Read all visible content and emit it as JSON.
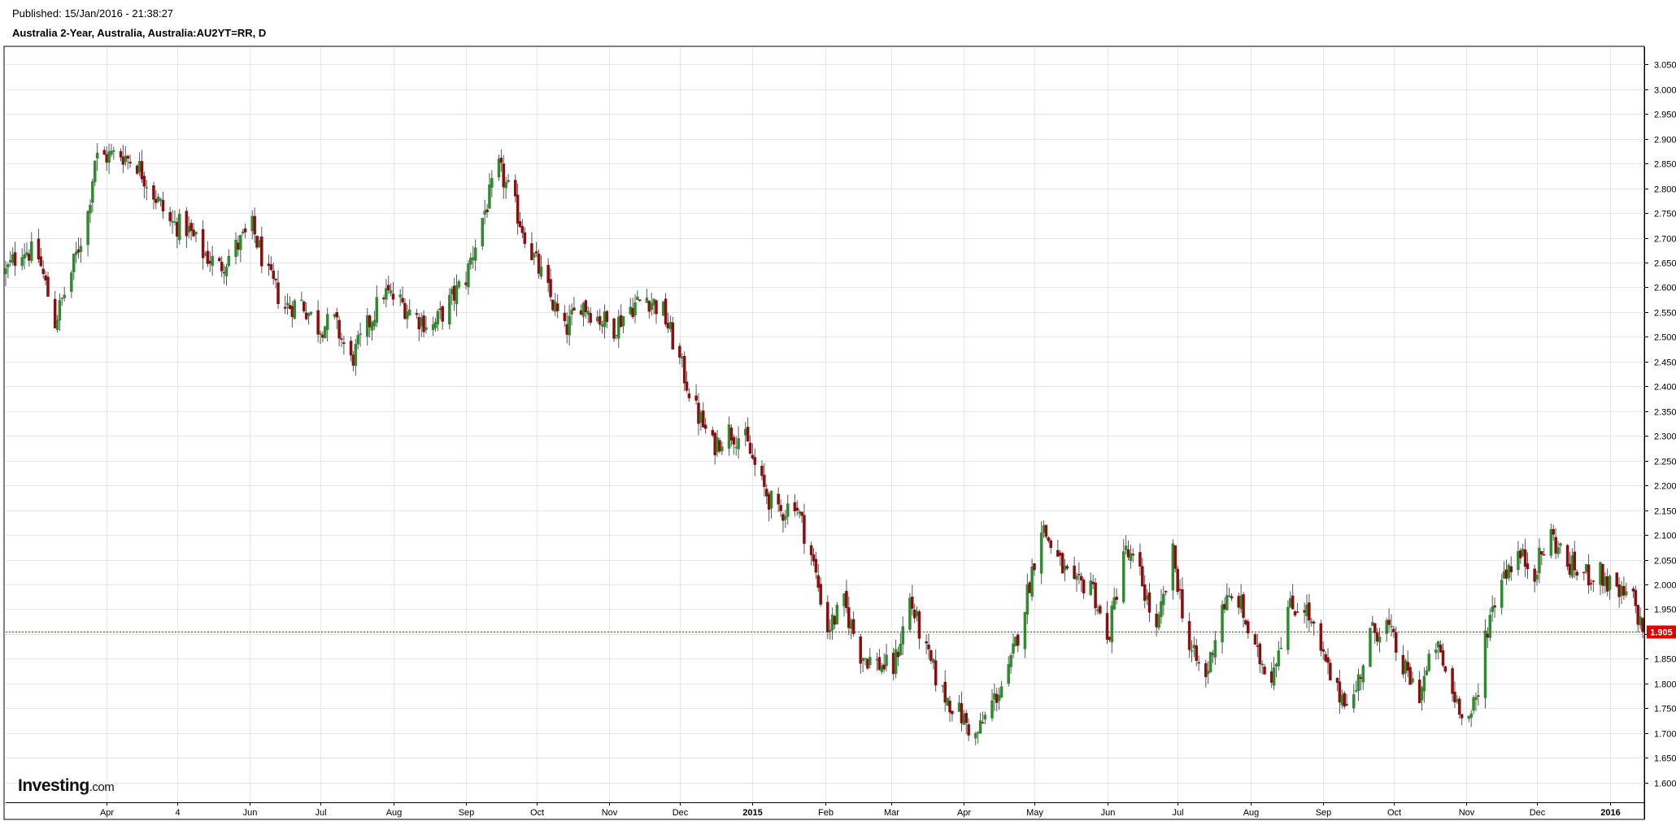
{
  "header": {
    "published": "Published: 15/Jan/2016 - 21:38:27",
    "title": "Australia 2-Year, Australia, Australia:AU2YT=RR, D"
  },
  "logo": {
    "brand": "Investing",
    "domain": ".com"
  },
  "colors": {
    "up": "#2e8b2e",
    "down": "#8b0d0d",
    "wick": "#555555",
    "grid": "#e6e6e6",
    "last_price": "#e00000"
  },
  "chart_data": {
    "type": "candlestick",
    "title": "Australia 2-Year, Australia, Australia:AU2YT=RR, D",
    "x_range": [
      "2014-02-17",
      "2016-01-15"
    ],
    "ylim": [
      1.56,
      3.085
    ],
    "y_ticks": [
      "3.050",
      "3.000",
      "2.950",
      "2.900",
      "2.850",
      "2.800",
      "2.750",
      "2.700",
      "2.650",
      "2.600",
      "2.550",
      "2.500",
      "2.450",
      "2.400",
      "2.350",
      "2.300",
      "2.250",
      "2.200",
      "2.150",
      "2.100",
      "2.050",
      "2.000",
      "1.950",
      "1.900",
      "1.850",
      "1.800",
      "1.750",
      "1.700",
      "1.650",
      "1.600"
    ],
    "x_ticks": [
      {
        "label": "Apr",
        "date": "2014-04-01"
      },
      {
        "label": "4",
        "date": "2014-05-01"
      },
      {
        "label": "Jun",
        "date": "2014-06-01"
      },
      {
        "label": "Jul",
        "date": "2014-07-01"
      },
      {
        "label": "Aug",
        "date": "2014-08-01"
      },
      {
        "label": "Sep",
        "date": "2014-09-01"
      },
      {
        "label": "Oct",
        "date": "2014-10-01"
      },
      {
        "label": "Nov",
        "date": "2014-11-01"
      },
      {
        "label": "Dec",
        "date": "2014-12-01"
      },
      {
        "label": "2015",
        "date": "2015-01-01",
        "bold": true
      },
      {
        "label": "Feb",
        "date": "2015-02-01"
      },
      {
        "label": "Mar",
        "date": "2015-03-01"
      },
      {
        "label": "Apr",
        "date": "2015-04-01"
      },
      {
        "label": "May",
        "date": "2015-05-01"
      },
      {
        "label": "Jun",
        "date": "2015-06-01"
      },
      {
        "label": "Jul",
        "date": "2015-07-01"
      },
      {
        "label": "Aug",
        "date": "2015-08-01"
      },
      {
        "label": "Sep",
        "date": "2015-09-01"
      },
      {
        "label": "Oct",
        "date": "2015-10-01"
      },
      {
        "label": "Nov",
        "date": "2015-11-01"
      },
      {
        "label": "Dec",
        "date": "2015-12-01"
      },
      {
        "label": "2016",
        "date": "2016-01-01",
        "bold": true
      }
    ],
    "last_price": "1.905",
    "grid": true,
    "close_path": [
      [
        "2014-02-17",
        2.63
      ],
      [
        "2014-02-24",
        2.68
      ],
      [
        "2014-03-03",
        2.66
      ],
      [
        "2014-03-10",
        2.53
      ],
      [
        "2014-03-17",
        2.63
      ],
      [
        "2014-03-24",
        2.75
      ],
      [
        "2014-03-27",
        2.86
      ],
      [
        "2014-04-07",
        2.87
      ],
      [
        "2014-04-14",
        2.85
      ],
      [
        "2014-04-21",
        2.79
      ],
      [
        "2014-04-28",
        2.73
      ],
      [
        "2014-05-05",
        2.72
      ],
      [
        "2014-05-12",
        2.67
      ],
      [
        "2014-05-19",
        2.64
      ],
      [
        "2014-05-26",
        2.68
      ],
      [
        "2014-06-02",
        2.72
      ],
      [
        "2014-06-09",
        2.62
      ],
      [
        "2014-06-16",
        2.56
      ],
      [
        "2014-06-23",
        2.57
      ],
      [
        "2014-06-30",
        2.52
      ],
      [
        "2014-07-07",
        2.53
      ],
      [
        "2014-07-14",
        2.45
      ],
      [
        "2014-07-21",
        2.52
      ],
      [
        "2014-07-28",
        2.59
      ],
      [
        "2014-08-04",
        2.57
      ],
      [
        "2014-08-11",
        2.54
      ],
      [
        "2014-08-18",
        2.52
      ],
      [
        "2014-08-25",
        2.57
      ],
      [
        "2014-09-01",
        2.62
      ],
      [
        "2014-09-08",
        2.74
      ],
      [
        "2014-09-15",
        2.84
      ],
      [
        "2014-09-22",
        2.76
      ],
      [
        "2014-09-29",
        2.67
      ],
      [
        "2014-10-06",
        2.59
      ],
      [
        "2014-10-13",
        2.51
      ],
      [
        "2014-10-20",
        2.57
      ],
      [
        "2014-10-27",
        2.54
      ],
      [
        "2014-11-03",
        2.52
      ],
      [
        "2014-11-10",
        2.56
      ],
      [
        "2014-11-17",
        2.58
      ],
      [
        "2014-11-24",
        2.55
      ],
      [
        "2014-12-01",
        2.45
      ],
      [
        "2014-12-08",
        2.35
      ],
      [
        "2014-12-15",
        2.28
      ],
      [
        "2014-12-22",
        2.31
      ],
      [
        "2014-12-29",
        2.29
      ],
      [
        "2015-01-05",
        2.2
      ],
      [
        "2015-01-12",
        2.14
      ],
      [
        "2015-01-19",
        2.17
      ],
      [
        "2015-01-26",
        2.06
      ],
      [
        "2015-02-02",
        1.91
      ],
      [
        "2015-02-09",
        1.96
      ],
      [
        "2015-02-16",
        1.86
      ],
      [
        "2015-02-23",
        1.84
      ],
      [
        "2015-03-02",
        1.83
      ],
      [
        "2015-03-09",
        1.97
      ],
      [
        "2015-03-16",
        1.86
      ],
      [
        "2015-03-23",
        1.78
      ],
      [
        "2015-03-30",
        1.74
      ],
      [
        "2015-04-06",
        1.69
      ],
      [
        "2015-04-13",
        1.76
      ],
      [
        "2015-04-20",
        1.82
      ],
      [
        "2015-04-27",
        1.96
      ],
      [
        "2015-05-04",
        2.12
      ],
      [
        "2015-05-11",
        2.05
      ],
      [
        "2015-05-18",
        1.99
      ],
      [
        "2015-05-25",
        2.01
      ],
      [
        "2015-06-01",
        1.88
      ],
      [
        "2015-06-08",
        2.07
      ],
      [
        "2015-06-15",
        2.02
      ],
      [
        "2015-06-22",
        1.9
      ],
      [
        "2015-06-29",
        2.06
      ],
      [
        "2015-07-06",
        1.87
      ],
      [
        "2015-07-13",
        1.81
      ],
      [
        "2015-07-20",
        1.96
      ],
      [
        "2015-07-27",
        1.97
      ],
      [
        "2015-08-03",
        1.86
      ],
      [
        "2015-08-10",
        1.82
      ],
      [
        "2015-08-17",
        1.95
      ],
      [
        "2015-08-24",
        1.96
      ],
      [
        "2015-08-31",
        1.86
      ],
      [
        "2015-09-07",
        1.78
      ],
      [
        "2015-09-14",
        1.77
      ],
      [
        "2015-09-21",
        1.9
      ],
      [
        "2015-09-28",
        1.92
      ],
      [
        "2015-10-05",
        1.83
      ],
      [
        "2015-10-12",
        1.78
      ],
      [
        "2015-10-19",
        1.88
      ],
      [
        "2015-10-26",
        1.78
      ],
      [
        "2015-11-02",
        1.73
      ],
      [
        "2015-11-06",
        1.77
      ],
      [
        "2015-11-09",
        1.9
      ],
      [
        "2015-11-16",
        2.02
      ],
      [
        "2015-11-23",
        2.06
      ],
      [
        "2015-11-30",
        2.03
      ],
      [
        "2015-12-07",
        2.1
      ],
      [
        "2015-12-14",
        2.04
      ],
      [
        "2015-12-21",
        2.02
      ],
      [
        "2015-12-28",
        2.02
      ],
      [
        "2016-01-04",
        1.98
      ],
      [
        "2016-01-11",
        1.97
      ],
      [
        "2016-01-15",
        1.905
      ]
    ]
  }
}
